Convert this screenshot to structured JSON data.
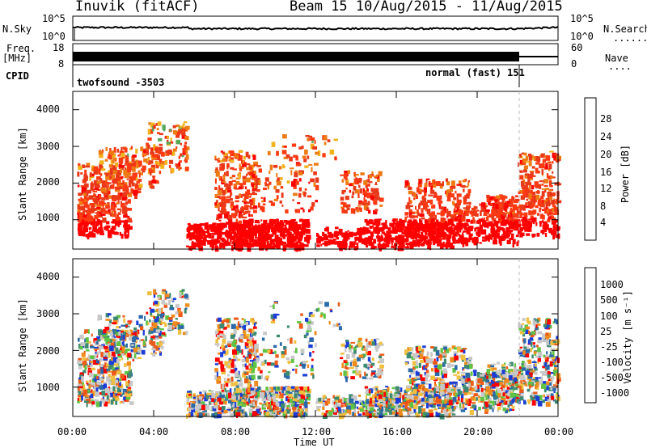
{
  "header": {
    "station": "Inuvik (fitACF)",
    "beam_date": "Beam 15  10/Aug/2015 - 11/Aug/2015"
  },
  "top_panels": {
    "nsky_label": "N.Sky",
    "nsearch_label": "N.Search",
    "nsky_ticks": [
      "10^5",
      "10^0"
    ],
    "nsky_right_ticks": [
      "10^5",
      "10^0"
    ],
    "freq_label_line1": "Freq.",
    "freq_label_line2": "[MHz]",
    "freq_ticks": [
      "18",
      "8"
    ],
    "nave_label": "Nave",
    "nave_ticks": [
      "60",
      "0"
    ],
    "cpid_label": "CPID",
    "cpid_modes": [
      "twofsound -3503",
      "normal (fast) 151"
    ],
    "dots": "......",
    "dots2": "...."
  },
  "chart_data": [
    {
      "type": "heatmap",
      "title": "",
      "xlabel": "",
      "ylabel": "Slant Range [km]",
      "yticks": [
        "1000",
        "2000",
        "3000",
        "4000"
      ],
      "ylim": [
        200,
        4500
      ],
      "xlim": [
        0,
        24
      ],
      "colorbar_label": "Power [dB]",
      "colorbar_ticks": [
        "4",
        "8",
        "12",
        "16",
        "20",
        "24",
        "28"
      ],
      "colorbar_colors": [
        "#1a3dff",
        "#2a4ea6",
        "#2f7f70",
        "#56a85a",
        "#c6c22a",
        "#f2b21c",
        "#ee7a14",
        "#e8381a",
        "#ff0000"
      ]
    },
    {
      "type": "heatmap",
      "title": "",
      "xlabel": "Time UT",
      "ylabel": "Slant Range [km]",
      "yticks": [
        "1000",
        "2000",
        "3000",
        "4000"
      ],
      "ylim": [
        200,
        4500
      ],
      "xlim": [
        0,
        24
      ],
      "xticks": [
        "00:00",
        "04:00",
        "08:00",
        "12:00",
        "16:00",
        "20:00",
        "00:00"
      ],
      "colorbar_label": "Velocity [m s⁻¹]",
      "colorbar_ticks": [
        "1000",
        "500",
        "100",
        "25",
        "-25",
        "-100",
        "-500",
        "-1000"
      ],
      "colorbar_colors": [
        "#1c3cd8",
        "#2a6aa8",
        "#3c8a70",
        "#5ec444",
        "#c8c8c8",
        "#f0c040",
        "#ef8a1c",
        "#ec5a18",
        "#ff0000"
      ]
    }
  ]
}
